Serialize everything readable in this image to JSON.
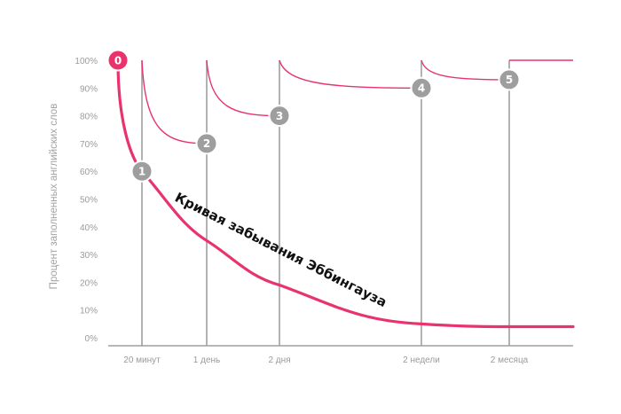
{
  "chart_data": {
    "type": "line",
    "title": "",
    "xlabel": "",
    "ylabel": "Процент заполненных английских слов",
    "ylim": [
      0,
      100
    ],
    "y_ticks": [
      "0%",
      "10%",
      "20%",
      "30%",
      "40%",
      "50%",
      "60%",
      "70%",
      "80%",
      "90%",
      "100%"
    ],
    "x_ticks": [
      "20 минут",
      "1 день",
      "2 дня",
      "2 недели",
      "2 месяца"
    ],
    "grid": false,
    "curve_label": "Кривая забывания Эббингауза",
    "forgetting_curve": {
      "name": "Кривая забывания Эббингауза",
      "color": "#e8336d",
      "points": [
        [
          "0",
          100
        ],
        [
          "20 минут",
          60
        ],
        [
          "1 день",
          35
        ],
        [
          "2 дня",
          19
        ],
        [
          "2 недели",
          5
        ],
        [
          "2 месяца",
          4
        ],
        [
          "end",
          4
        ]
      ]
    },
    "review_curve": {
      "color": "#e8336d",
      "segments": [
        {
          "from": "20 минут",
          "to": "1 день",
          "start": 100,
          "end": 70
        },
        {
          "from": "1 день",
          "to": "2 дня",
          "start": 100,
          "end": 80
        },
        {
          "from": "2 дня",
          "to": "2 недели",
          "start": 100,
          "end": 90
        },
        {
          "from": "2 недели",
          "to": "2 месяца",
          "start": 100,
          "end": 93
        },
        {
          "from": "2 месяца",
          "to": "end",
          "start": 100,
          "end": 100
        }
      ]
    },
    "markers": [
      {
        "label": "0",
        "x": "0",
        "y": 100,
        "color": "#e8336d"
      },
      {
        "label": "1",
        "x": "20 минут",
        "y": 60,
        "color": "#9e9e9e"
      },
      {
        "label": "2",
        "x": "1 день",
        "y": 70,
        "color": "#9e9e9e"
      },
      {
        "label": "3",
        "x": "2 дня",
        "y": 80,
        "color": "#9e9e9e"
      },
      {
        "label": "4",
        "x": "2 недели",
        "y": 90,
        "color": "#9e9e9e"
      },
      {
        "label": "5",
        "x": "2 месяца",
        "y": 93,
        "color": "#9e9e9e"
      }
    ],
    "colors": {
      "curve": "#e8336d",
      "axis": "#8c8c8c",
      "verticals": "#9e9e9e",
      "tick_text": "#9a9a9a"
    }
  }
}
